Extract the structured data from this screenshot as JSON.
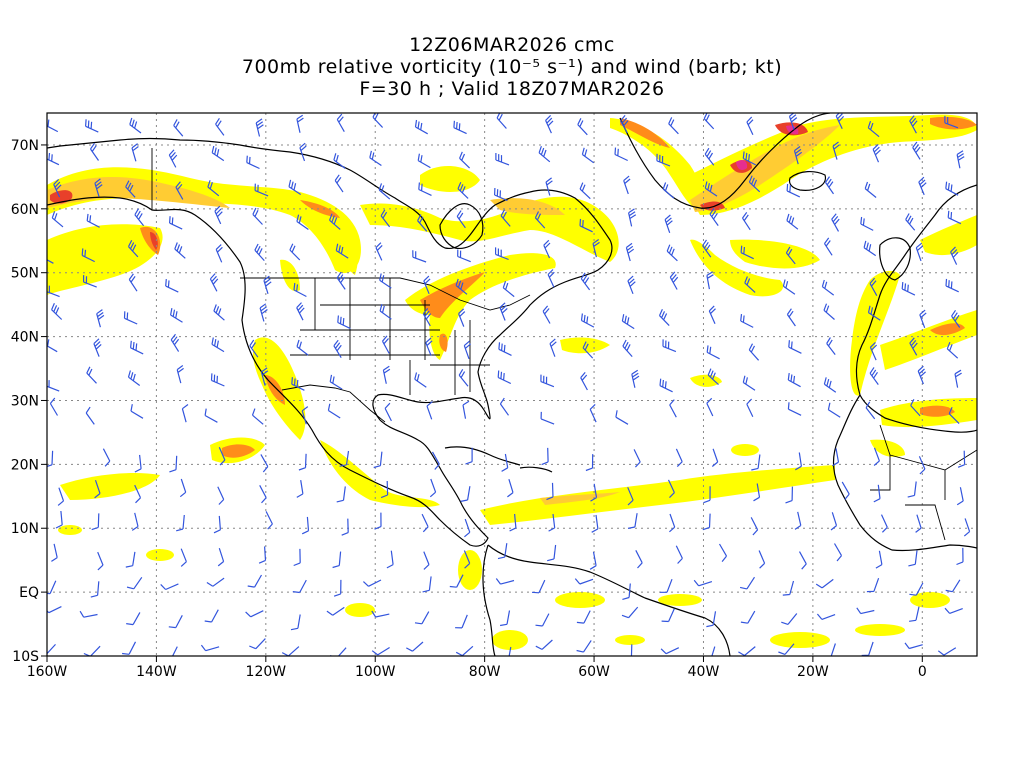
{
  "title": {
    "line1": "12Z06MAR2026 cmc",
    "line2": "700mb relative vorticity (10⁻⁵ s⁻¹) and wind (barb; kt)",
    "line3": "F=30 h ; Valid 18Z07MAR2026"
  },
  "map": {
    "lon_range": [
      -160,
      10
    ],
    "lat_range": [
      -10,
      75
    ],
    "lon_ticks": [
      "160W",
      "140W",
      "120W",
      "100W",
      "80W",
      "60W",
      "40W",
      "20W",
      "0"
    ],
    "lat_ticks": [
      "70N",
      "60N",
      "50N",
      "40N",
      "30N",
      "20N",
      "10N",
      "EQ",
      "10S"
    ],
    "colors": {
      "low": "#ffff00",
      "mid": "#ffcc33",
      "high": "#ff8c1a",
      "very_high": "#e8402a",
      "extreme": "#e62e8f",
      "barb": "#3355dd",
      "coast": "#000000",
      "grid": "#888888"
    }
  }
}
